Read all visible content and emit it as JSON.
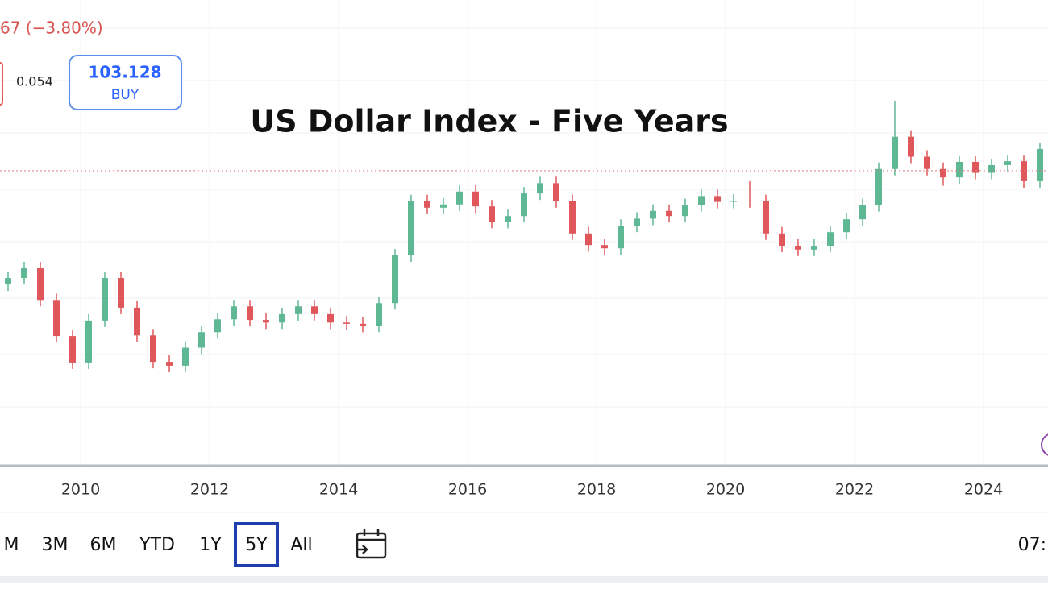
{
  "header": {
    "change": "67 (−3.80%)",
    "spread": "0.054",
    "buy_price": 103.128,
    "buy_label": "BUY"
  },
  "chart_data": {
    "type": "candlestick",
    "title": "US Dollar Index - Five Years",
    "x": [
      2008.875,
      2009.125,
      2009.375,
      2009.625,
      2009.875,
      2010.125,
      2010.375,
      2010.625,
      2010.875,
      2011.125,
      2011.375,
      2011.625,
      2011.875,
      2012.125,
      2012.375,
      2012.625,
      2012.875,
      2013.125,
      2013.375,
      2013.625,
      2013.875,
      2014.125,
      2014.375,
      2014.625,
      2014.875,
      2015.125,
      2015.375,
      2015.625,
      2015.875,
      2016.125,
      2016.375,
      2016.625,
      2016.875,
      2017.125,
      2017.375,
      2017.625,
      2017.875,
      2018.125,
      2018.375,
      2018.625,
      2018.875,
      2019.125,
      2019.375,
      2019.625,
      2019.875,
      2020.125,
      2020.375,
      2020.625,
      2020.875,
      2021.125,
      2021.375,
      2021.625,
      2021.875,
      2022.125,
      2022.375,
      2022.625,
      2022.875,
      2023.125,
      2023.375,
      2023.625,
      2023.875,
      2024.125,
      2024.375,
      2024.625,
      2024.875
    ],
    "open": [
      85.5,
      86.5,
      88.0,
      83.1,
      77.5,
      73.4,
      79.9,
      86.5,
      81.9,
      77.6,
      73.5,
      72.9,
      75.7,
      78.1,
      80.1,
      82.1,
      80.0,
      79.6,
      80.9,
      82.1,
      80.9,
      79.6,
      79.4,
      79.1,
      82.6,
      90.0,
      98.4,
      97.4,
      97.9,
      99.9,
      97.6,
      95.2,
      96.1,
      99.6,
      101.2,
      98.4,
      93.4,
      91.6,
      91.1,
      94.6,
      95.7,
      96.9,
      96.1,
      97.8,
      99.2,
      98.3,
      98.5,
      98.4,
      93.4,
      91.5,
      90.9,
      91.5,
      93.6,
      95.6,
      97.8,
      103.4,
      108.4,
      105.3,
      103.4,
      102.1,
      104.5,
      102.8,
      104.0,
      104.6,
      101.5
    ],
    "high": [
      87.5,
      89.0,
      89.0,
      84.1,
      78.5,
      80.9,
      87.5,
      87.5,
      82.9,
      78.6,
      74.5,
      76.7,
      79.1,
      81.1,
      83.1,
      83.1,
      81.0,
      81.9,
      83.1,
      83.1,
      81.9,
      80.6,
      80.4,
      83.6,
      91.0,
      99.4,
      99.4,
      98.9,
      100.9,
      100.9,
      98.6,
      97.1,
      100.6,
      102.2,
      102.2,
      99.4,
      94.4,
      92.6,
      95.6,
      96.7,
      97.9,
      97.9,
      98.8,
      100.2,
      100.2,
      99.5,
      101.5,
      99.4,
      94.4,
      92.5,
      92.5,
      94.6,
      96.6,
      98.8,
      104.4,
      114.0,
      109.4,
      106.3,
      104.4,
      105.5,
      105.5,
      105.0,
      105.6,
      105.6,
      107.5
    ],
    "low": [
      84.5,
      85.5,
      82.1,
      76.5,
      72.4,
      72.4,
      78.9,
      80.9,
      76.6,
      72.5,
      71.9,
      71.9,
      74.7,
      77.1,
      79.1,
      79.0,
      78.6,
      78.6,
      79.9,
      79.9,
      78.6,
      78.4,
      78.1,
      78.1,
      81.6,
      89.0,
      96.4,
      96.4,
      96.9,
      96.6,
      94.2,
      94.2,
      95.1,
      98.6,
      97.4,
      92.4,
      90.6,
      90.1,
      90.1,
      93.6,
      94.7,
      95.1,
      95.1,
      96.8,
      97.3,
      97.3,
      97.4,
      92.4,
      90.5,
      89.9,
      89.9,
      90.5,
      92.6,
      94.6,
      96.8,
      102.4,
      104.3,
      102.4,
      100.8,
      101.1,
      101.8,
      101.8,
      103.0,
      100.5,
      100.5
    ],
    "close": [
      86.5,
      88.0,
      83.1,
      77.5,
      73.4,
      79.9,
      86.5,
      81.9,
      77.6,
      73.5,
      72.9,
      75.7,
      78.1,
      80.1,
      82.1,
      80.0,
      79.6,
      80.9,
      82.1,
      80.9,
      79.6,
      79.4,
      79.1,
      82.6,
      90.0,
      98.4,
      97.4,
      97.9,
      99.9,
      97.6,
      95.2,
      96.1,
      99.6,
      101.2,
      98.4,
      93.4,
      91.6,
      91.1,
      94.6,
      95.7,
      96.9,
      96.1,
      97.8,
      99.2,
      98.3,
      98.5,
      98.4,
      93.4,
      91.5,
      90.9,
      91.5,
      93.6,
      95.6,
      97.8,
      103.4,
      108.4,
      105.3,
      103.4,
      102.1,
      104.5,
      102.8,
      104.0,
      104.6,
      101.5,
      106.5
    ],
    "up_color": "#5fb894",
    "down_color": "#e0575b",
    "xlim": [
      2008.75,
      2025
    ],
    "xticks": [
      2010,
      2012,
      2014,
      2016,
      2018,
      2020,
      2022,
      2024
    ],
    "ylim": [
      57.4,
      129.6
    ]
  },
  "range_bar": {
    "buttons": [
      "M",
      "3M",
      "6M",
      "YTD",
      "1Y",
      "5Y",
      "All"
    ],
    "selected": "5Y",
    "time": "07:"
  }
}
